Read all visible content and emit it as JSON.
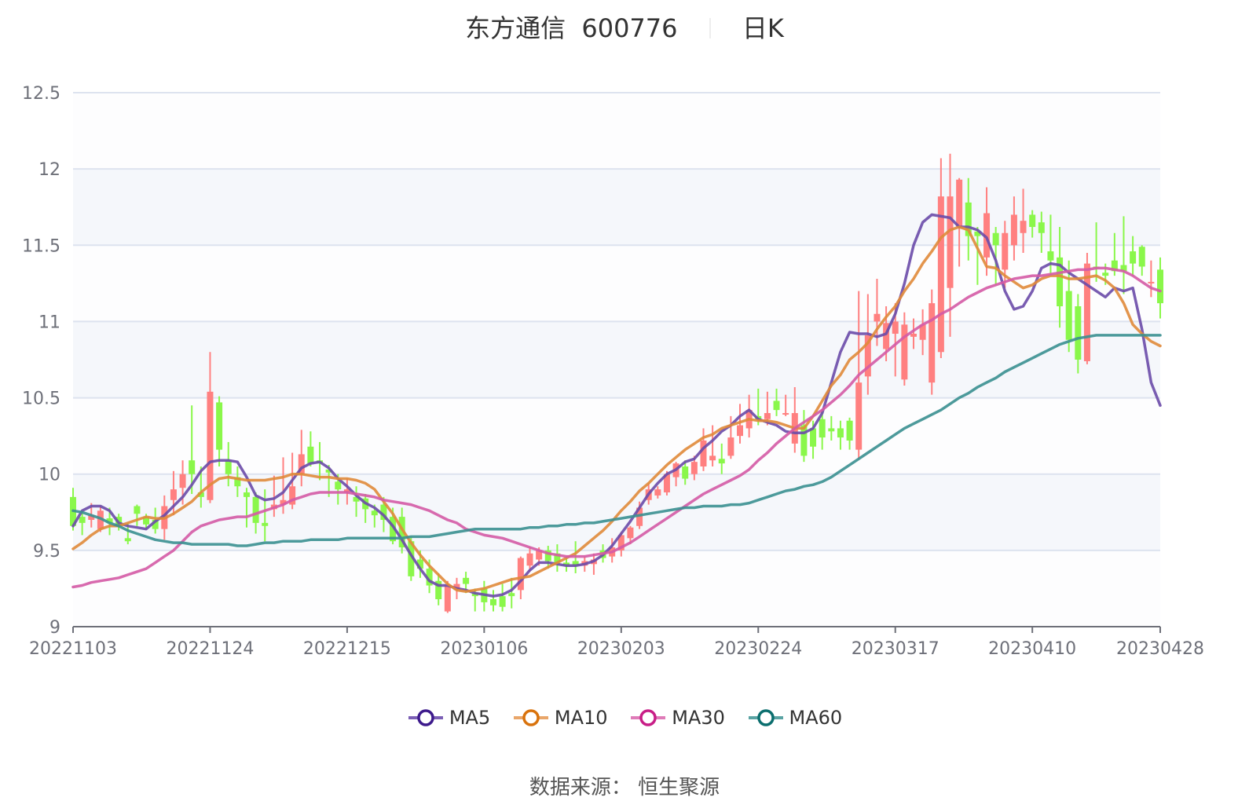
{
  "header": {
    "stock_name": "东方通信",
    "stock_code": "600776",
    "period": "日K"
  },
  "legend": [
    {
      "label": "MA5",
      "color": "#3d1a8c",
      "line_color": "#7b5fb5"
    },
    {
      "label": "MA10",
      "color": "#d9730d",
      "line_color": "#e9a66a"
    },
    {
      "label": "MA30",
      "color": "#c81e87",
      "line_color": "#df7bb8"
    },
    {
      "label": "MA60",
      "color": "#0b6e6e",
      "line_color": "#5aa3a3"
    }
  ],
  "footer": {
    "source": "数据来源：  恒生聚源"
  },
  "colors": {
    "up": "#ff8080",
    "down": "#8af74a",
    "ma5": "#6a4aa8",
    "ma10": "#e08a3a",
    "ma30": "#d45aa5",
    "ma60": "#3a8f90",
    "grid": "#dde3ef",
    "band": "#f5f7fb",
    "axis": "#6e7079",
    "label": "#6e7079"
  },
  "chart_data": {
    "type": "candlestick",
    "title": "东方通信 600776 日K",
    "xlabel": "",
    "ylabel": "",
    "ylim": [
      9,
      12.5
    ],
    "yticks": [
      9,
      9.5,
      10,
      10.5,
      11,
      11.5,
      12,
      12.5
    ],
    "xticks": [
      {
        "index": 0,
        "label": "20221103"
      },
      {
        "index": 15,
        "label": "20221124"
      },
      {
        "index": 30,
        "label": "20221215"
      },
      {
        "index": 45,
        "label": "20230106"
      },
      {
        "index": 60,
        "label": "20230203"
      },
      {
        "index": 75,
        "label": "20230224"
      },
      {
        "index": 90,
        "label": "20230317"
      },
      {
        "index": 105,
        "label": "20230410"
      },
      {
        "index": 119,
        "label": "20230428"
      }
    ],
    "grid": true,
    "legend_position": "bottom",
    "candles_ohlc_note": "each entry is [open, close, low, high]",
    "candles": [
      [
        9.85,
        9.66,
        9.63,
        9.91
      ],
      [
        9.72,
        9.68,
        9.6,
        9.76
      ],
      [
        9.7,
        9.73,
        9.65,
        9.81
      ],
      [
        9.64,
        9.76,
        9.62,
        9.79
      ],
      [
        9.71,
        9.68,
        9.6,
        9.78
      ],
      [
        9.72,
        9.66,
        9.63,
        9.74
      ],
      [
        9.58,
        9.56,
        9.54,
        9.68
      ],
      [
        9.79,
        9.74,
        9.66,
        9.8
      ],
      [
        9.72,
        9.67,
        9.64,
        9.74
      ],
      [
        9.7,
        9.64,
        9.61,
        9.78
      ],
      [
        9.64,
        9.79,
        9.57,
        9.86
      ],
      [
        9.83,
        9.9,
        9.73,
        10.02
      ],
      [
        9.91,
        10.0,
        9.8,
        10.09
      ],
      [
        10.09,
        10.0,
        9.87,
        10.45
      ],
      [
        9.88,
        9.85,
        9.78,
        10.05
      ],
      [
        9.83,
        10.54,
        9.81,
        10.8
      ],
      [
        10.47,
        10.16,
        10.05,
        10.51
      ],
      [
        10.09,
        10.0,
        9.92,
        10.21
      ],
      [
        9.98,
        9.92,
        9.85,
        10.05
      ],
      [
        9.88,
        9.85,
        9.65,
        9.91
      ],
      [
        9.85,
        9.68,
        9.61,
        9.88
      ],
      [
        9.68,
        9.66,
        9.56,
        9.9
      ],
      [
        9.77,
        9.8,
        9.72,
        9.99
      ],
      [
        9.8,
        9.83,
        9.74,
        10.11
      ],
      [
        9.8,
        9.92,
        9.77,
        10.14
      ],
      [
        10.0,
        10.13,
        9.92,
        10.29
      ],
      [
        10.18,
        10.07,
        10.05,
        10.28
      ],
      [
        10.09,
        10.07,
        9.96,
        10.21
      ],
      [
        10.03,
        10.01,
        9.85,
        10.06
      ],
      [
        9.95,
        9.9,
        9.8,
        10.0
      ],
      [
        9.88,
        9.9,
        9.8,
        9.97
      ],
      [
        9.85,
        9.82,
        9.72,
        9.92
      ],
      [
        9.84,
        9.77,
        9.68,
        9.87
      ],
      [
        9.76,
        9.73,
        9.65,
        9.8
      ],
      [
        9.8,
        9.7,
        9.62,
        9.85
      ],
      [
        9.72,
        9.56,
        9.54,
        9.78
      ],
      [
        9.72,
        9.52,
        9.48,
        9.78
      ],
      [
        9.56,
        9.33,
        9.3,
        9.59
      ],
      [
        9.44,
        9.38,
        9.32,
        9.5
      ],
      [
        9.38,
        9.27,
        9.22,
        9.44
      ],
      [
        9.3,
        9.18,
        9.14,
        9.35
      ],
      [
        9.1,
        9.27,
        9.09,
        9.3
      ],
      [
        9.24,
        9.28,
        9.18,
        9.32
      ],
      [
        9.32,
        9.28,
        9.22,
        9.36
      ],
      [
        9.22,
        9.2,
        9.1,
        9.25
      ],
      [
        9.25,
        9.16,
        9.1,
        9.3
      ],
      [
        9.18,
        9.14,
        9.1,
        9.24
      ],
      [
        9.2,
        9.13,
        9.1,
        9.28
      ],
      [
        9.22,
        9.2,
        9.12,
        9.32
      ],
      [
        9.24,
        9.45,
        9.18,
        9.46
      ],
      [
        9.4,
        9.48,
        9.36,
        9.52
      ],
      [
        9.44,
        9.5,
        9.4,
        9.52
      ],
      [
        9.5,
        9.43,
        9.38,
        9.53
      ],
      [
        9.48,
        9.42,
        9.36,
        9.54
      ],
      [
        9.42,
        9.4,
        9.36,
        9.46
      ],
      [
        9.43,
        9.4,
        9.35,
        9.56
      ],
      [
        9.4,
        9.43,
        9.36,
        9.46
      ],
      [
        9.41,
        9.44,
        9.34,
        9.48
      ],
      [
        9.5,
        9.45,
        9.42,
        9.54
      ],
      [
        9.46,
        9.52,
        9.42,
        9.58
      ],
      [
        9.5,
        9.6,
        9.46,
        9.62
      ],
      [
        9.58,
        9.65,
        9.54,
        9.66
      ],
      [
        9.66,
        9.78,
        9.64,
        9.82
      ],
      [
        9.83,
        9.9,
        9.8,
        9.94
      ],
      [
        9.86,
        9.9,
        9.84,
        9.92
      ],
      [
        9.88,
        10.0,
        9.86,
        10.02
      ],
      [
        9.98,
        10.07,
        9.92,
        10.08
      ],
      [
        10.05,
        9.97,
        9.93,
        10.09
      ],
      [
        10.0,
        10.08,
        9.96,
        10.12
      ],
      [
        10.05,
        10.22,
        10.02,
        10.3
      ],
      [
        10.09,
        10.12,
        10.05,
        10.32
      ],
      [
        10.1,
        10.07,
        10.0,
        10.2
      ],
      [
        10.12,
        10.24,
        10.1,
        10.38
      ],
      [
        10.25,
        10.32,
        10.2,
        10.46
      ],
      [
        10.3,
        10.42,
        10.24,
        10.52
      ],
      [
        10.38,
        10.36,
        10.32,
        10.56
      ],
      [
        10.36,
        10.4,
        10.32,
        10.54
      ],
      [
        10.48,
        10.42,
        10.38,
        10.56
      ],
      [
        10.4,
        10.4,
        10.38,
        10.52
      ],
      [
        10.2,
        10.4,
        10.14,
        10.57
      ],
      [
        10.32,
        10.12,
        10.08,
        10.42
      ],
      [
        10.3,
        10.18,
        10.1,
        10.35
      ],
      [
        10.36,
        10.24,
        10.16,
        10.42
      ],
      [
        10.3,
        10.28,
        10.22,
        10.38
      ],
      [
        10.3,
        10.24,
        10.16,
        10.35
      ],
      [
        10.35,
        10.22,
        10.16,
        10.37
      ],
      [
        10.16,
        10.6,
        10.1,
        11.2
      ],
      [
        10.64,
        10.91,
        10.52,
        11.18
      ],
      [
        11.0,
        11.05,
        10.84,
        11.28
      ],
      [
        10.82,
        10.99,
        10.74,
        11.1
      ],
      [
        10.92,
        11.0,
        10.64,
        11.12
      ],
      [
        10.62,
        10.98,
        10.58,
        11.06
      ],
      [
        10.9,
        10.92,
        10.82,
        11.02
      ],
      [
        10.88,
        10.98,
        10.78,
        11.08
      ],
      [
        10.6,
        11.12,
        10.52,
        11.21
      ],
      [
        10.8,
        11.82,
        10.76,
        12.07
      ],
      [
        11.22,
        11.82,
        10.9,
        12.1
      ],
      [
        11.62,
        11.93,
        11.36,
        11.94
      ],
      [
        11.78,
        11.56,
        11.4,
        11.94
      ],
      [
        11.59,
        11.56,
        11.24,
        11.62
      ],
      [
        11.42,
        11.71,
        11.3,
        11.88
      ],
      [
        11.58,
        11.5,
        11.24,
        11.62
      ],
      [
        11.34,
        11.58,
        11.22,
        11.66
      ],
      [
        11.5,
        11.7,
        11.4,
        11.82
      ],
      [
        11.58,
        11.66,
        11.45,
        11.87
      ],
      [
        11.7,
        11.62,
        11.55,
        11.73
      ],
      [
        11.65,
        11.58,
        11.45,
        11.72
      ],
      [
        11.46,
        11.4,
        11.3,
        11.7
      ],
      [
        11.42,
        11.1,
        10.96,
        11.62
      ],
      [
        11.2,
        10.88,
        10.8,
        11.4
      ],
      [
        11.1,
        10.75,
        10.66,
        11.18
      ],
      [
        10.74,
        11.38,
        10.72,
        11.45
      ],
      [
        11.36,
        11.35,
        11.26,
        11.65
      ],
      [
        11.32,
        11.3,
        11.24,
        11.38
      ],
      [
        11.4,
        11.33,
        11.3,
        11.58
      ],
      [
        11.37,
        11.33,
        11.18,
        11.69
      ],
      [
        11.46,
        11.38,
        11.3,
        11.56
      ],
      [
        11.49,
        11.36,
        11.3,
        11.5
      ],
      [
        11.25,
        11.26,
        11.16,
        11.4
      ],
      [
        11.34,
        11.12,
        11.02,
        11.42
      ]
    ],
    "series": [
      {
        "name": "MA5",
        "values_note": "approx y-values sampled at candle indices",
        "values": [
          9.66,
          9.76,
          9.79,
          9.79,
          9.76,
          9.68,
          9.66,
          9.65,
          9.64,
          9.69,
          9.73,
          9.79,
          9.85,
          9.93,
          10.02,
          10.08,
          10.09,
          10.09,
          10.08,
          9.98,
          9.86,
          9.83,
          9.84,
          9.88,
          9.96,
          10.04,
          10.07,
          10.08,
          10.04,
          9.97,
          9.92,
          9.86,
          9.81,
          9.78,
          9.73,
          9.66,
          9.57,
          9.47,
          9.38,
          9.3,
          9.27,
          9.27,
          9.25,
          9.24,
          9.22,
          9.21,
          9.2,
          9.21,
          9.24,
          9.3,
          9.37,
          9.42,
          9.42,
          9.41,
          9.4,
          9.4,
          9.41,
          9.43,
          9.47,
          9.53,
          9.61,
          9.69,
          9.78,
          9.87,
          9.94,
          10.0,
          10.03,
          10.08,
          10.1,
          10.17,
          10.22,
          10.28,
          10.32,
          10.38,
          10.42,
          10.36,
          10.34,
          10.32,
          10.28,
          10.27,
          10.27,
          10.3,
          10.4,
          10.6,
          10.8,
          10.93,
          10.92,
          10.92,
          10.9,
          10.92,
          11.05,
          11.25,
          11.5,
          11.65,
          11.7,
          11.69,
          11.68,
          11.62,
          11.62,
          11.6,
          11.55,
          11.4,
          11.2,
          11.08,
          11.1,
          11.2,
          11.35,
          11.38,
          11.37,
          11.32,
          11.28,
          11.24,
          11.2,
          11.16,
          11.22,
          11.2,
          11.22,
          10.95,
          10.6,
          10.45
        ]
      },
      {
        "name": "MA10",
        "values": [
          9.51,
          9.55,
          9.6,
          9.64,
          9.66,
          9.66,
          9.68,
          9.7,
          9.72,
          9.71,
          9.71,
          9.74,
          9.78,
          9.82,
          9.88,
          9.93,
          9.97,
          9.98,
          9.97,
          9.96,
          9.96,
          9.96,
          9.97,
          9.98,
          10.0,
          10.0,
          9.99,
          9.98,
          9.98,
          9.97,
          9.97,
          9.96,
          9.94,
          9.9,
          9.82,
          9.74,
          9.64,
          9.55,
          9.47,
          9.4,
          9.34,
          9.28,
          9.24,
          9.23,
          9.24,
          9.25,
          9.27,
          9.29,
          9.31,
          9.32,
          9.33,
          9.36,
          9.39,
          9.42,
          9.45,
          9.48,
          9.53,
          9.58,
          9.63,
          9.69,
          9.76,
          9.82,
          9.89,
          9.94,
          10.0,
          10.06,
          10.11,
          10.16,
          10.2,
          10.24,
          10.26,
          10.3,
          10.32,
          10.34,
          10.36,
          10.35,
          10.35,
          10.34,
          10.32,
          10.3,
          10.3,
          10.38,
          10.48,
          10.58,
          10.65,
          10.75,
          10.8,
          10.86,
          10.95,
          11.03,
          11.1,
          11.2,
          11.28,
          11.38,
          11.46,
          11.55,
          11.6,
          11.62,
          11.6,
          11.48,
          11.36,
          11.35,
          11.3,
          11.26,
          11.22,
          11.24,
          11.28,
          11.3,
          11.3,
          11.28,
          11.28,
          11.29,
          11.3,
          11.27,
          11.22,
          11.12,
          10.98,
          10.92,
          10.87,
          10.84
        ]
      },
      {
        "name": "MA30",
        "values": [
          9.26,
          9.27,
          9.29,
          9.3,
          9.31,
          9.32,
          9.34,
          9.36,
          9.38,
          9.42,
          9.46,
          9.5,
          9.56,
          9.62,
          9.66,
          9.68,
          9.7,
          9.71,
          9.72,
          9.72,
          9.74,
          9.76,
          9.78,
          9.8,
          9.83,
          9.85,
          9.87,
          9.88,
          9.88,
          9.88,
          9.88,
          9.87,
          9.86,
          9.85,
          9.83,
          9.82,
          9.81,
          9.8,
          9.78,
          9.76,
          9.73,
          9.7,
          9.68,
          9.64,
          9.62,
          9.6,
          9.59,
          9.58,
          9.56,
          9.54,
          9.52,
          9.5,
          9.48,
          9.47,
          9.46,
          9.46,
          9.46,
          9.47,
          9.48,
          9.49,
          9.52,
          9.55,
          9.59,
          9.63,
          9.67,
          9.71,
          9.75,
          9.79,
          9.83,
          9.87,
          9.9,
          9.93,
          9.96,
          9.99,
          10.03,
          10.09,
          10.14,
          10.2,
          10.25,
          10.3,
          10.34,
          10.38,
          10.42,
          10.47,
          10.52,
          10.58,
          10.65,
          10.7,
          10.75,
          10.8,
          10.85,
          10.9,
          10.94,
          10.98,
          11.01,
          11.05,
          11.08,
          11.12,
          11.16,
          11.19,
          11.22,
          11.24,
          11.26,
          11.28,
          11.29,
          11.3,
          11.3,
          11.31,
          11.32,
          11.33,
          11.34,
          11.34,
          11.35,
          11.35,
          11.34,
          11.33,
          11.3,
          11.26,
          11.22,
          11.2
        ]
      },
      {
        "name": "MA60",
        "values": [
          9.76,
          9.75,
          9.73,
          9.71,
          9.68,
          9.66,
          9.63,
          9.61,
          9.59,
          9.57,
          9.56,
          9.55,
          9.55,
          9.54,
          9.54,
          9.54,
          9.54,
          9.54,
          9.53,
          9.53,
          9.54,
          9.55,
          9.55,
          9.56,
          9.56,
          9.56,
          9.57,
          9.57,
          9.57,
          9.57,
          9.58,
          9.58,
          9.58,
          9.58,
          9.58,
          9.58,
          9.58,
          9.59,
          9.59,
          9.59,
          9.6,
          9.61,
          9.62,
          9.63,
          9.64,
          9.64,
          9.64,
          9.64,
          9.64,
          9.64,
          9.65,
          9.65,
          9.66,
          9.66,
          9.67,
          9.67,
          9.68,
          9.68,
          9.69,
          9.7,
          9.71,
          9.72,
          9.73,
          9.74,
          9.75,
          9.76,
          9.77,
          9.78,
          9.78,
          9.79,
          9.79,
          9.79,
          9.8,
          9.8,
          9.81,
          9.83,
          9.85,
          9.87,
          9.89,
          9.9,
          9.92,
          9.93,
          9.95,
          9.98,
          10.02,
          10.06,
          10.1,
          10.14,
          10.18,
          10.22,
          10.26,
          10.3,
          10.33,
          10.36,
          10.39,
          10.42,
          10.46,
          10.5,
          10.53,
          10.57,
          10.6,
          10.63,
          10.67,
          10.7,
          10.73,
          10.76,
          10.79,
          10.82,
          10.85,
          10.87,
          10.89,
          10.9,
          10.91,
          10.91,
          10.91,
          10.91,
          10.91,
          10.91,
          10.91,
          10.91
        ]
      }
    ]
  }
}
